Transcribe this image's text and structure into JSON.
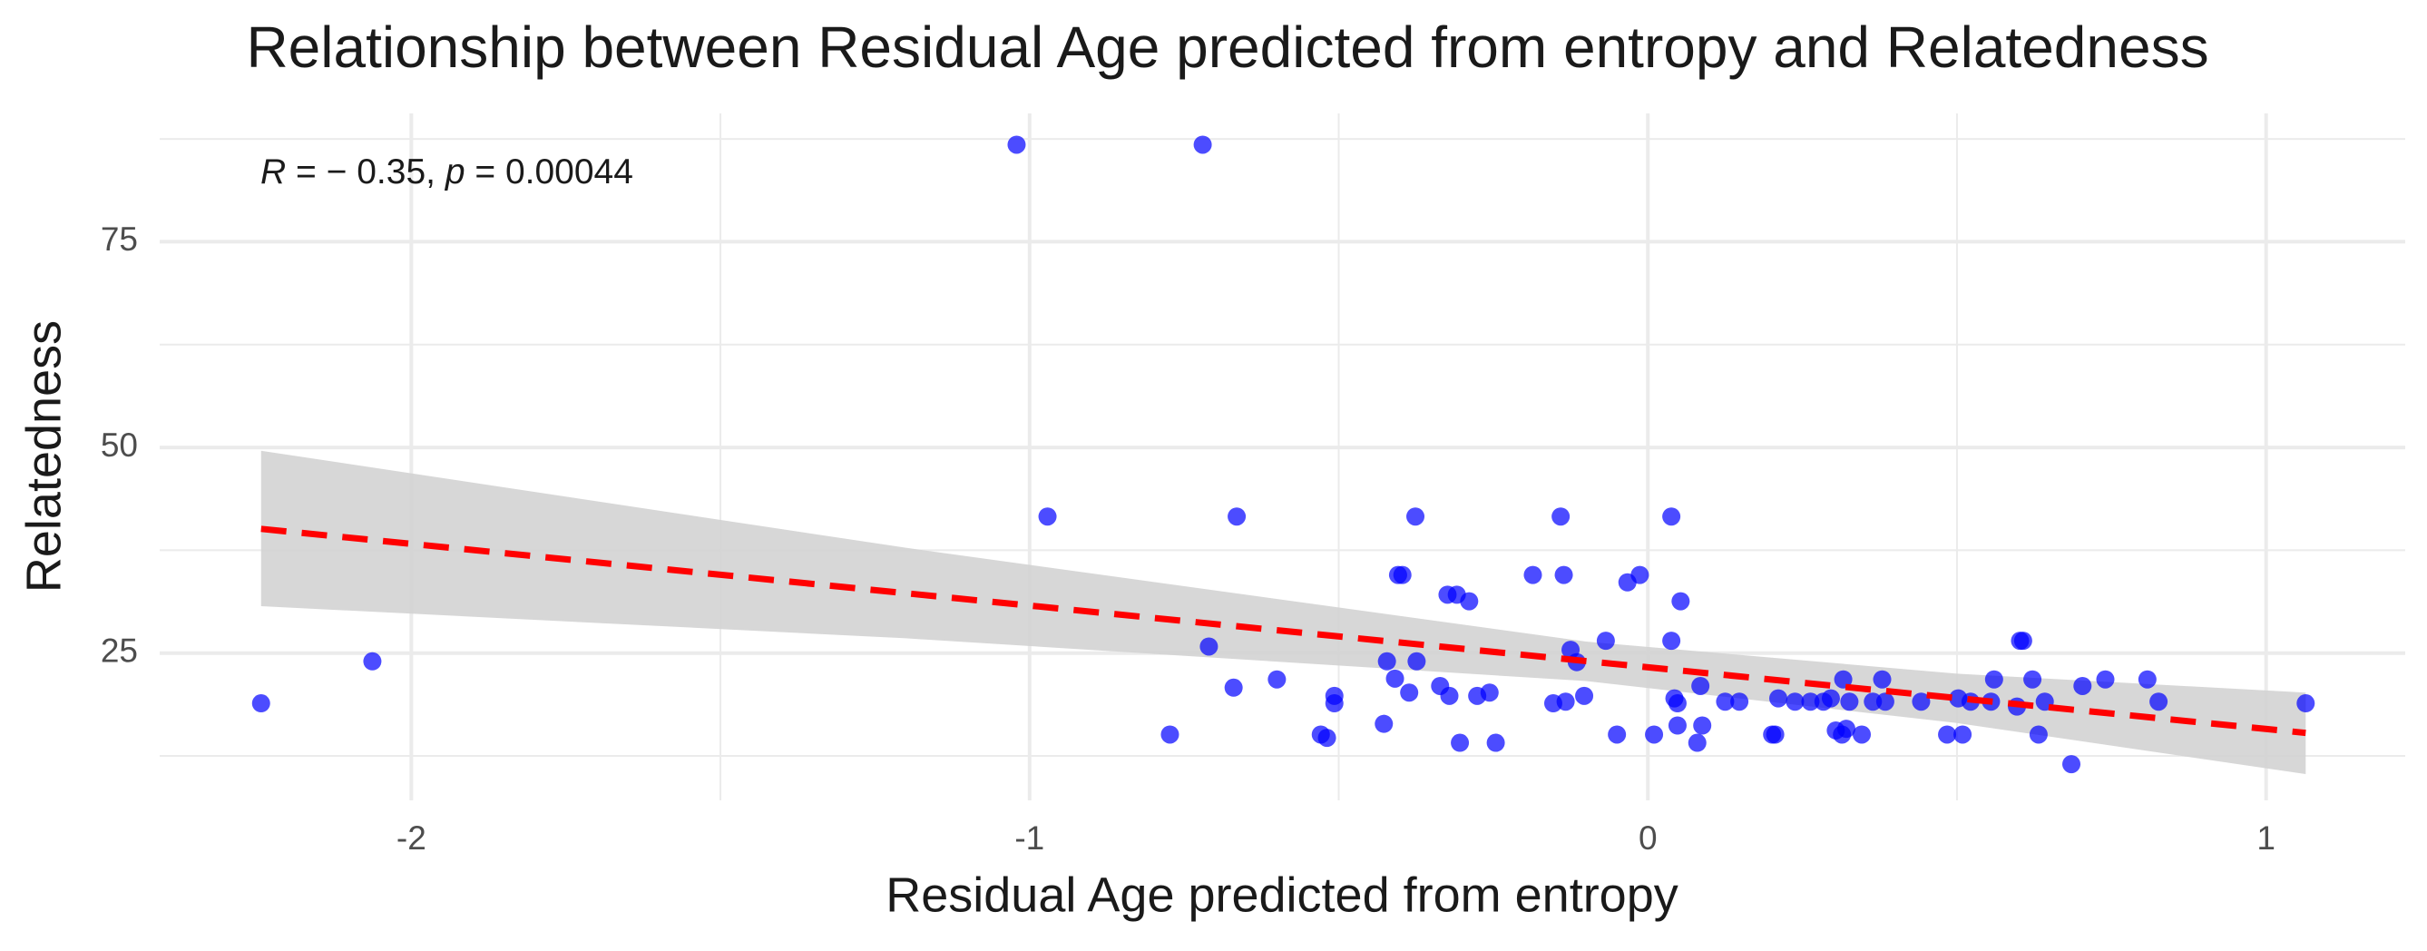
{
  "chart_data": {
    "type": "scatter",
    "title": "Relationship between Residual Age predicted from entropy and Relatedness",
    "x_label": "Residual Age predicted from entropy",
    "y_label": "Relatedness",
    "annotation": {
      "r_label": "R",
      "r_value": " = − 0.35, ",
      "p_label": "p",
      "p_value": " = 0.00044"
    },
    "xlim": [
      -2.407,
      1.225
    ],
    "ylim": [
      7.1,
      90.6
    ],
    "xticks": [
      -2,
      -1,
      0,
      1
    ],
    "yticks": [
      25,
      50,
      75
    ],
    "xminorticks": [
      -1.5,
      -0.5,
      0.5
    ],
    "yminorticks": [
      12.5,
      37.5,
      62.5,
      87.5
    ],
    "grid": true,
    "series": [
      {
        "color": "#0000ff",
        "x": [
          -2.243,
          -2.063,
          -1.021,
          -0.72,
          -0.971,
          -0.665,
          -0.71,
          -0.773,
          -0.67,
          -0.6,
          -0.529,
          -0.519,
          -0.507,
          -0.507,
          -0.427,
          -0.422,
          -0.409,
          -0.404,
          -0.397,
          -0.386,
          -0.376,
          -0.374,
          -0.336,
          -0.324,
          -0.321,
          -0.309,
          -0.304,
          -0.289,
          -0.276,
          -0.256,
          -0.246,
          -0.186,
          -0.153,
          -0.141,
          -0.136,
          -0.133,
          -0.125,
          -0.115,
          -0.103,
          -0.068,
          -0.05,
          -0.033,
          -0.013,
          0.038,
          0.01,
          0.038,
          0.043,
          0.048,
          0.053,
          0.048,
          0.08,
          0.085,
          0.088,
          0.125,
          0.148,
          0.201,
          0.206,
          0.211,
          0.238,
          0.263,
          0.284,
          0.296,
          0.316,
          0.304,
          0.314,
          0.321,
          0.326,
          0.346,
          0.379,
          0.364,
          0.384,
          0.442,
          0.484,
          0.502,
          0.509,
          0.522,
          0.555,
          0.56,
          0.602,
          0.607,
          0.597,
          0.622,
          0.632,
          0.642,
          0.685,
          0.703,
          0.74,
          0.808,
          0.826,
          1.064
        ],
        "values": [
          18.9,
          24.0,
          86.8,
          86.8,
          41.6,
          41.6,
          25.8,
          15.1,
          20.8,
          21.8,
          15.1,
          14.7,
          19.8,
          18.9,
          16.4,
          24.0,
          21.9,
          34.5,
          34.5,
          20.2,
          41.6,
          24.0,
          21.0,
          32.1,
          19.8,
          32.1,
          14.1,
          31.3,
          19.8,
          20.2,
          14.1,
          34.5,
          18.9,
          41.6,
          34.5,
          19.1,
          25.4,
          23.9,
          19.8,
          26.5,
          15.1,
          33.6,
          34.5,
          41.6,
          15.1,
          26.5,
          19.5,
          18.9,
          31.3,
          16.2,
          14.1,
          21.0,
          16.2,
          19.1,
          19.1,
          15.1,
          15.1,
          19.5,
          19.1,
          19.1,
          19.1,
          19.5,
          21.8,
          15.6,
          15.1,
          15.8,
          19.1,
          15.1,
          21.8,
          19.1,
          19.1,
          19.1,
          15.1,
          19.5,
          15.1,
          19.1,
          19.1,
          21.8,
          26.5,
          26.5,
          18.5,
          21.8,
          15.1,
          19.1,
          11.5,
          21.0,
          21.8,
          21.8,
          19.1,
          18.9
        ]
      }
    ],
    "fit": {
      "color": "#ff0000",
      "x": [
        -2.243,
        1.064
      ],
      "values": [
        40.1,
        15.3
      ]
    },
    "band": {
      "color": "#d3d3d3",
      "x": [
        -2.243,
        -1.2,
        -0.1,
        0.5,
        1.064
      ],
      "lower": [
        30.7,
        26.8,
        21.6,
        16.5,
        10.3
      ],
      "upper": [
        49.6,
        37.8,
        26.4,
        22.5,
        20.2
      ]
    }
  }
}
